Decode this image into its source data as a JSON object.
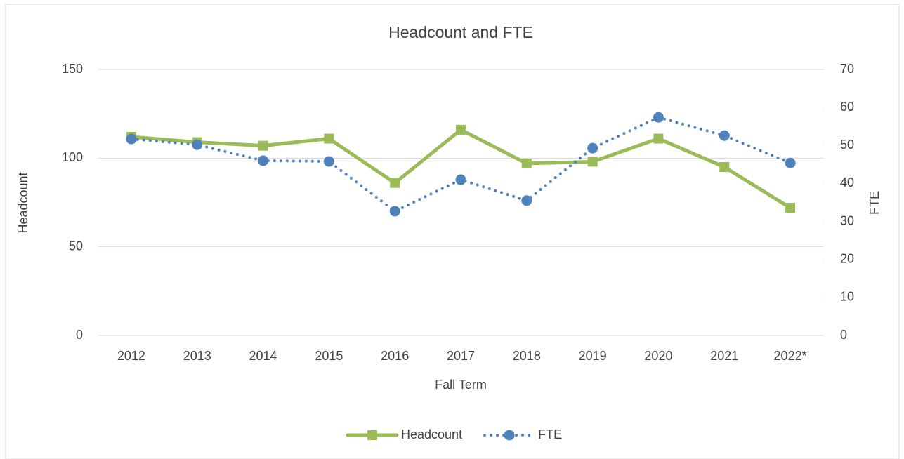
{
  "chart_data": {
    "type": "line",
    "title": "Headcount and FTE",
    "x_label": "Fall Term",
    "y_label": "Headcount",
    "y2_label": "FTE",
    "categories": [
      "2012",
      "2013",
      "2014",
      "2015",
      "2016",
      "2017",
      "2018",
      "2019",
      "2020",
      "2021",
      "2022*"
    ],
    "series": [
      {
        "name": "Headcount",
        "color": "#9bbb59",
        "line_style": "solid",
        "marker": "square",
        "values": [
          112,
          109,
          107,
          111,
          86,
          116,
          97,
          98,
          111,
          95,
          72
        ]
      },
      {
        "name": "FTE",
        "color": "#4f81bd",
        "line_style": "dotted",
        "marker": "circle",
        "axis": "y2",
        "values": [
          51.7,
          50.2,
          46,
          45.8,
          32.7,
          41,
          35.5,
          49.3,
          57.4,
          52.6,
          45.4
        ]
      }
    ],
    "ylim": [
      0,
      150
    ],
    "yticks": [
      0,
      50,
      100,
      150
    ],
    "y2lim": [
      0,
      70
    ],
    "y2ticks": [
      0,
      10,
      20,
      30,
      40,
      50,
      60,
      70
    ],
    "grid": true,
    "legend": "bottom"
  }
}
